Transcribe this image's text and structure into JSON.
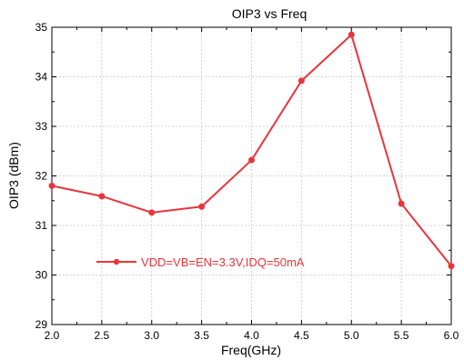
{
  "chart_data": {
    "type": "line",
    "title": "OIP3 vs Freq",
    "xlabel": "Freq(GHz)",
    "ylabel": "OIP3 (dBm)",
    "xlim": [
      2.0,
      6.0
    ],
    "ylim": [
      29,
      35
    ],
    "x_ticks": [
      "2.0",
      "2.5",
      "3.0",
      "3.5",
      "4.0",
      "4.5",
      "5.0",
      "5.5",
      "6.0"
    ],
    "y_ticks": [
      "29",
      "30",
      "31",
      "32",
      "33",
      "34",
      "35"
    ],
    "grid": true,
    "legend_position": "lower-left",
    "series": [
      {
        "name": "VDD=VB=EN=3.3V,IDQ=50mA",
        "color": "#e8353b",
        "x": [
          2.0,
          2.5,
          3.0,
          3.5,
          4.0,
          4.5,
          5.0,
          5.5,
          6.0
        ],
        "y": [
          31.8,
          31.59,
          31.26,
          31.38,
          32.32,
          33.92,
          34.85,
          31.44,
          30.18
        ]
      }
    ]
  }
}
